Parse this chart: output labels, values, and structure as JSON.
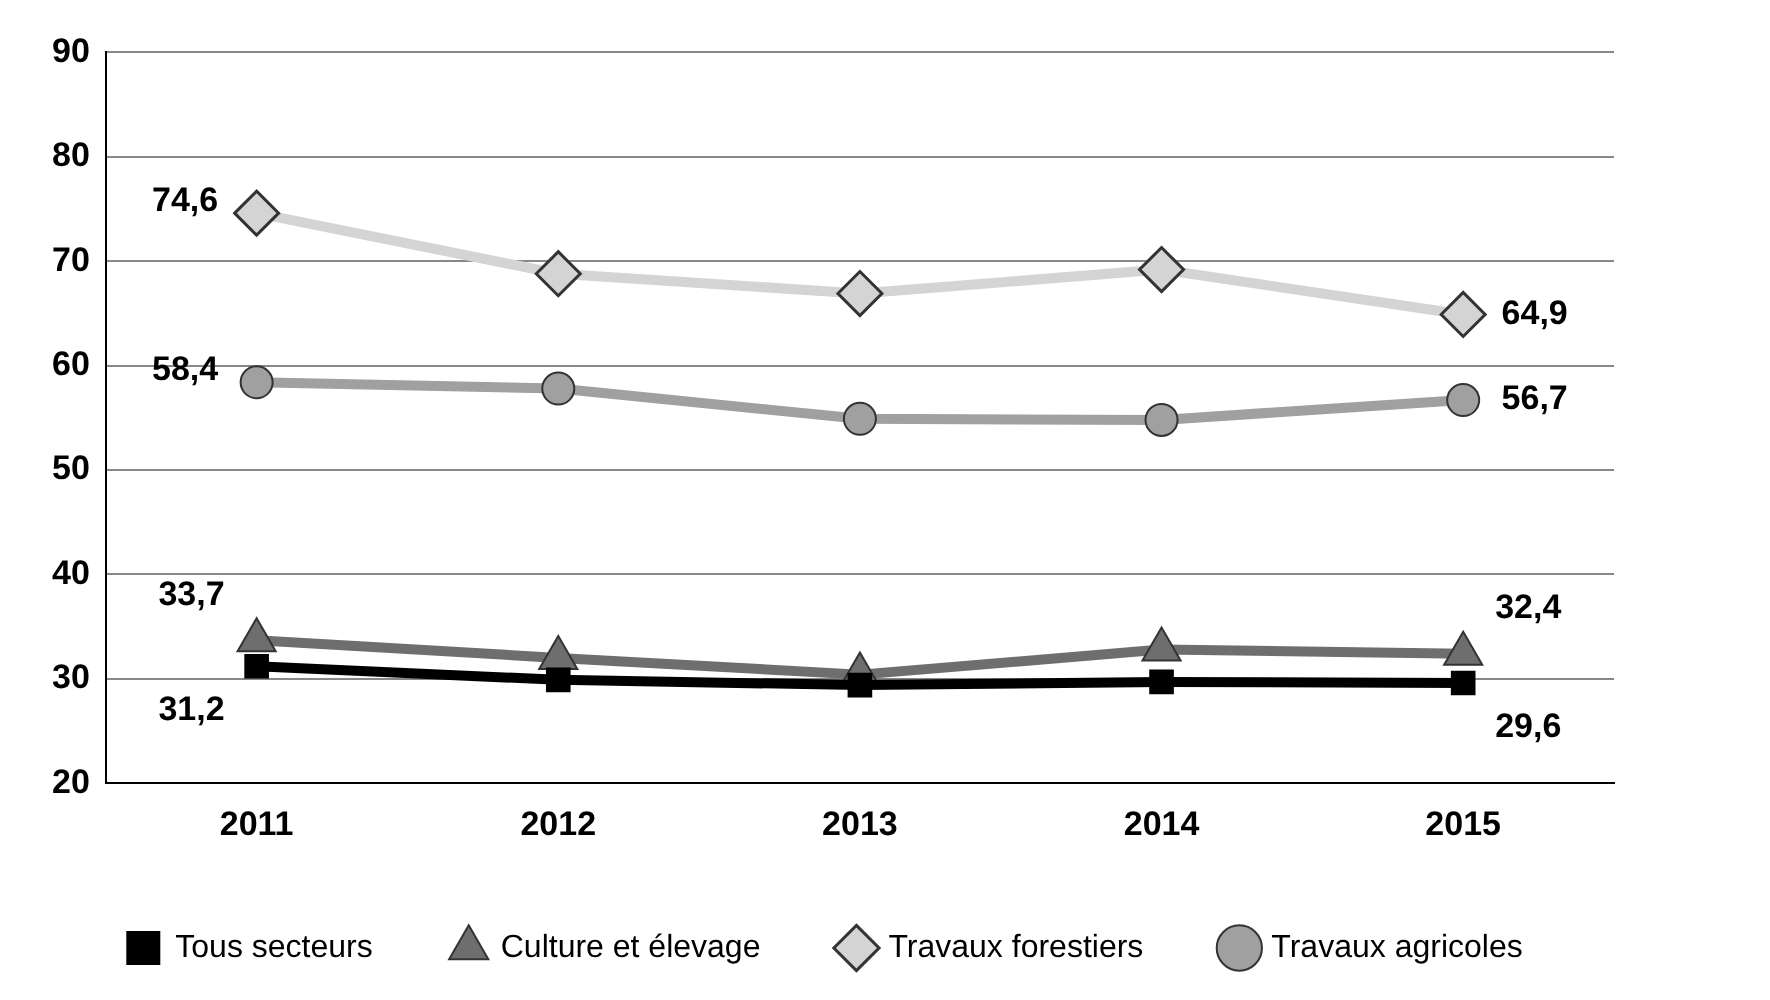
{
  "chart_data": {
    "type": "line",
    "categories": [
      "2011",
      "2012",
      "2013",
      "2014",
      "2015"
    ],
    "series": [
      {
        "name": "Tous secteurs",
        "color": "#000000",
        "marker": "square",
        "values": [
          31.2,
          29.9,
          29.4,
          29.7,
          29.6
        ],
        "value_labels": [
          "31,2",
          null,
          null,
          null,
          "29,6"
        ]
      },
      {
        "name": "Culture et élevage",
        "color": "#6e6e6e",
        "marker": "triangle",
        "values": [
          33.7,
          32.0,
          30.4,
          32.8,
          32.4
        ],
        "value_labels": [
          "33,7",
          null,
          null,
          null,
          "32,4"
        ]
      },
      {
        "name": "Travaux forestiers",
        "color": "#d4d4d4",
        "marker": "diamond",
        "values": [
          74.6,
          68.8,
          66.9,
          69.2,
          64.9
        ],
        "value_labels": [
          "74,6",
          null,
          null,
          null,
          "64,9"
        ]
      },
      {
        "name": "Travaux agricoles",
        "color": "#a0a0a0",
        "marker": "circle",
        "values": [
          58.4,
          57.8,
          54.9,
          54.8,
          56.7
        ],
        "value_labels": [
          "58,4",
          null,
          null,
          null,
          "56,7"
        ]
      }
    ],
    "ylim": [
      20,
      90
    ],
    "yticks": [
      20,
      30,
      40,
      50,
      60,
      70,
      80,
      90
    ],
    "grid": "y",
    "legend": "bottom",
    "line_style": "solid"
  }
}
